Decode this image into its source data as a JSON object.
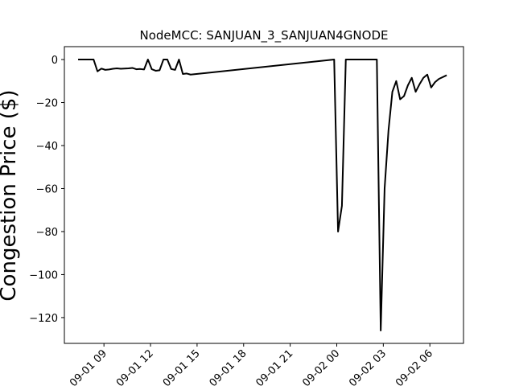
{
  "chart_data": {
    "type": "line",
    "title": "NodeMCC: SANJUAN_3_SANJUAN4GNODE",
    "xlabel": "",
    "ylabel": "Congestion Price ($)",
    "ylim": [
      -132,
      6
    ],
    "y_ticks": [
      0,
      -20,
      -40,
      -60,
      -80,
      -100,
      -120
    ],
    "y_tick_labels": [
      "0",
      "−20",
      "−40",
      "−60",
      "−80",
      "−100",
      "−120"
    ],
    "xlim": [
      "2023-09-01 06:27",
      "2023-09-02 08:10"
    ],
    "x_ticks": [
      "2023-09-01 09:00",
      "2023-09-01 12:00",
      "2023-09-01 15:00",
      "2023-09-01 18:00",
      "2023-09-01 21:00",
      "2023-09-02 00:00",
      "2023-09-02 03:00",
      "2023-09-02 06:00"
    ],
    "x_tick_labels": [
      "09-01 09",
      "09-01 12",
      "09-01 15",
      "09-01 18",
      "09-01 21",
      "09-02 00",
      "09-02 03",
      "09-02 06"
    ],
    "grid": false,
    "line_color": "#000000",
    "series": [
      {
        "x": [
          "2023-09-01 07:20",
          "2023-09-01 08:20",
          "2023-09-01 08:35",
          "2023-09-01 08:50",
          "2023-09-01 09:05",
          "2023-09-01 09:20",
          "2023-09-01 09:35",
          "2023-09-01 09:50",
          "2023-09-01 10:05",
          "2023-09-01 10:20",
          "2023-09-01 10:35",
          "2023-09-01 10:50",
          "2023-09-01 11:05",
          "2023-09-01 11:20",
          "2023-09-01 11:35",
          "2023-09-01 11:50",
          "2023-09-01 12:05",
          "2023-09-01 12:20",
          "2023-09-01 12:35",
          "2023-09-01 12:50",
          "2023-09-01 13:05",
          "2023-09-01 13:20",
          "2023-09-01 13:35",
          "2023-09-01 13:50",
          "2023-09-01 14:05",
          "2023-09-01 14:20",
          "2023-09-01 14:35",
          "2023-09-01 23:50",
          "2023-09-02 00:05",
          "2023-09-02 00:20",
          "2023-09-02 00:35",
          "2023-09-02 02:35",
          "2023-09-02 02:50",
          "2023-09-02 03:05",
          "2023-09-02 03:20",
          "2023-09-02 03:35",
          "2023-09-02 03:50",
          "2023-09-02 04:05",
          "2023-09-02 04:20",
          "2023-09-02 04:35",
          "2023-09-02 04:50",
          "2023-09-02 05:05",
          "2023-09-02 05:20",
          "2023-09-02 05:35",
          "2023-09-02 05:50",
          "2023-09-02 06:05",
          "2023-09-02 06:20",
          "2023-09-02 06:35",
          "2023-09-02 07:05"
        ],
        "y": [
          0,
          0,
          -5.5,
          -4.2,
          -4.8,
          -4.6,
          -4.3,
          -4.1,
          -4.3,
          -4.2,
          -4.1,
          -3.9,
          -4.5,
          -4.4,
          -4.6,
          0,
          -4.5,
          -5.2,
          -5.0,
          0,
          0,
          -4.4,
          -4.8,
          0,
          -6.7,
          -6.5,
          -7.0,
          0,
          -80,
          -68,
          0,
          0,
          -126,
          -60,
          -33,
          -15,
          -10,
          -18.5,
          -17,
          -12,
          -8.5,
          -15,
          -11.5,
          -8.5,
          -7,
          -13,
          -10.5,
          -9,
          -7.3
        ]
      }
    ]
  }
}
